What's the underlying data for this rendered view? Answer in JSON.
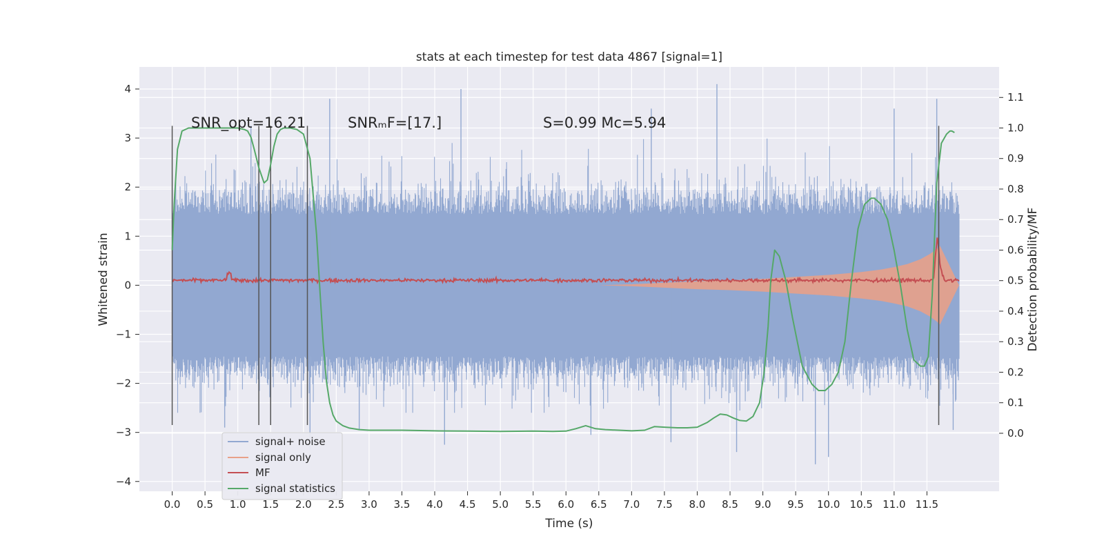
{
  "chart_data": {
    "type": "line",
    "title": "stats at each timestep for test data 4867 [signal=1]",
    "xlabel": "Time (s)",
    "ylabel": "Whitened strain",
    "y2label": "Detection probability/MF",
    "xlim": [
      -0.5,
      12.6
    ],
    "ylim": [
      -4.2,
      4.45
    ],
    "y2lim": [
      -0.19,
      1.2
    ],
    "x_ticks": [
      0.0,
      0.5,
      1.0,
      1.5,
      2.0,
      2.5,
      3.0,
      3.5,
      4.0,
      4.5,
      5.0,
      5.5,
      6.0,
      6.5,
      7.0,
      7.5,
      8.0,
      8.5,
      9.0,
      9.5,
      10.0,
      10.5,
      11.0,
      11.5
    ],
    "x_tick_labels": [
      "0.0",
      "0.5",
      "1.0",
      "1.5",
      "2.0",
      "2.5",
      "3.0",
      "3.5",
      "4.0",
      "4.5",
      "5.0",
      "5.5",
      "6.0",
      "6.5",
      "7.0",
      "7.5",
      "8.0",
      "8.5",
      "9.0",
      "9.5",
      "10.0",
      "10.5",
      "11.0",
      "11.5"
    ],
    "y_ticks": [
      -4,
      -3,
      -2,
      -1,
      0,
      1,
      2,
      3,
      4
    ],
    "y_tick_labels": [
      "−4",
      "−3",
      "−2",
      "−1",
      "0",
      "1",
      "2",
      "3",
      "4"
    ],
    "y2_ticks": [
      0.0,
      0.1,
      0.2,
      0.3,
      0.4,
      0.5,
      0.6,
      0.7,
      0.8,
      0.9,
      1.0,
      1.1
    ],
    "y2_tick_labels": [
      "0.0",
      "0.1",
      "0.2",
      "0.3",
      "0.4",
      "0.5",
      "0.6",
      "0.7",
      "0.8",
      "0.9",
      "1.0",
      "1.1"
    ],
    "grid": true,
    "legend_position": "lower-left",
    "annotations": [
      {
        "id": "snr-opt",
        "text": "SNR_opt=16.21",
        "x": 0.2,
        "y": 3.25
      },
      {
        "id": "snr-mf",
        "text": "SNRₘF=[17.]",
        "x": 2.6,
        "y": 3.25
      },
      {
        "id": "s-mc",
        "text": "S=0.99   Mc=5.94",
        "x": 5.6,
        "y": 3.25
      }
    ],
    "vertical_markers": {
      "x": [
        0.0,
        1.32,
        1.5,
        2.06,
        11.68
      ],
      "ymin": -2.85,
      "ymax": 3.25,
      "color": "#555555"
    },
    "series": [
      {
        "name": "signal+ noise",
        "kind": "noise-band",
        "color": "#92a8d1",
        "x_range": [
          0.0,
          11.99
        ],
        "core_envelope": [
          -1.45,
          1.45
        ],
        "typical_extremes": [
          -2.6,
          3.5
        ],
        "outlier_peaks": [
          {
            "x": 0.8,
            "y": -2.9
          },
          {
            "x": 1.2,
            "y": 3.25
          },
          {
            "x": 2.1,
            "y": -3.35
          },
          {
            "x": 2.4,
            "y": 3.8
          },
          {
            "x": 2.85,
            "y": -2.95
          },
          {
            "x": 4.15,
            "y": -3.25
          },
          {
            "x": 4.4,
            "y": 4.0
          },
          {
            "x": 6.38,
            "y": -3.05
          },
          {
            "x": 7.3,
            "y": 3.6
          },
          {
            "x": 7.6,
            "y": -3.2
          },
          {
            "x": 8.3,
            "y": 4.1
          },
          {
            "x": 8.6,
            "y": -3.4
          },
          {
            "x": 9.8,
            "y": -3.65
          },
          {
            "x": 10.0,
            "y": -3.5
          },
          {
            "x": 11.0,
            "y": 3.6
          },
          {
            "x": 11.65,
            "y": 3.8
          },
          {
            "x": 11.9,
            "y": -2.95
          }
        ]
      },
      {
        "name": "signal only",
        "kind": "chirp-envelope",
        "color": "#e8a088",
        "x": [
          6.5,
          7.0,
          7.5,
          8.0,
          8.5,
          9.0,
          9.5,
          10.0,
          10.5,
          10.8,
          11.0,
          11.2,
          11.4,
          11.55,
          11.66,
          11.7,
          11.99
        ],
        "amplitude": [
          0.0,
          0.02,
          0.05,
          0.08,
          0.1,
          0.13,
          0.17,
          0.21,
          0.27,
          0.32,
          0.37,
          0.43,
          0.53,
          0.64,
          0.75,
          0.8,
          0.0
        ]
      },
      {
        "name": "MF",
        "kind": "line",
        "color": "#c44e52",
        "x": [
          0.0,
          0.9,
          11.6,
          11.63,
          11.66,
          11.7,
          11.76,
          11.99
        ],
        "y": [
          0.1,
          0.1,
          0.1,
          0.6,
          1.0,
          0.4,
          0.1,
          0.1
        ],
        "jitter": 0.06
      },
      {
        "name": "signal statistics",
        "kind": "line",
        "axis": "right",
        "color": "#55a868",
        "x": [
          0.0,
          0.03,
          0.08,
          0.15,
          0.25,
          0.4,
          0.6,
          0.8,
          1.0,
          1.1,
          1.15,
          1.2,
          1.25,
          1.32,
          1.4,
          1.45,
          1.5,
          1.55,
          1.6,
          1.65,
          1.7,
          1.8,
          1.9,
          2.0,
          2.1,
          2.2,
          2.25,
          2.3,
          2.35,
          2.4,
          2.45,
          2.5,
          2.6,
          2.7,
          2.85,
          3.0,
          3.5,
          4.0,
          4.5,
          5.0,
          5.5,
          5.8,
          6.0,
          6.15,
          6.3,
          6.45,
          6.6,
          7.0,
          7.2,
          7.35,
          7.5,
          7.7,
          7.85,
          8.0,
          8.15,
          8.25,
          8.35,
          8.45,
          8.55,
          8.65,
          8.75,
          8.85,
          8.95,
          9.02,
          9.08,
          9.12,
          9.18,
          9.25,
          9.35,
          9.45,
          9.6,
          9.75,
          9.85,
          9.95,
          10.05,
          10.15,
          10.25,
          10.35,
          10.45,
          10.55,
          10.65,
          10.7,
          10.8,
          10.9,
          11.0,
          11.1,
          11.2,
          11.3,
          11.4,
          11.46,
          11.52,
          11.58,
          11.65,
          11.72,
          11.8,
          11.85,
          11.88,
          11.92
        ],
        "y": [
          0.6,
          0.75,
          0.93,
          0.99,
          1.0,
          1.0,
          1.0,
          1.0,
          1.0,
          0.995,
          0.99,
          0.97,
          0.93,
          0.87,
          0.82,
          0.83,
          0.88,
          0.94,
          0.98,
          0.995,
          1.0,
          1.0,
          0.995,
          0.98,
          0.9,
          0.65,
          0.47,
          0.3,
          0.17,
          0.1,
          0.06,
          0.04,
          0.025,
          0.017,
          0.012,
          0.01,
          0.01,
          0.008,
          0.007,
          0.006,
          0.007,
          0.006,
          0.007,
          0.015,
          0.025,
          0.015,
          0.012,
          0.008,
          0.01,
          0.022,
          0.02,
          0.018,
          0.018,
          0.02,
          0.035,
          0.05,
          0.063,
          0.06,
          0.05,
          0.042,
          0.04,
          0.055,
          0.1,
          0.2,
          0.35,
          0.5,
          0.6,
          0.58,
          0.5,
          0.38,
          0.22,
          0.16,
          0.14,
          0.14,
          0.16,
          0.2,
          0.3,
          0.5,
          0.67,
          0.75,
          0.77,
          0.77,
          0.75,
          0.7,
          0.6,
          0.48,
          0.34,
          0.24,
          0.22,
          0.22,
          0.25,
          0.45,
          0.82,
          0.95,
          0.98,
          0.99,
          0.99,
          0.985
        ]
      }
    ]
  }
}
